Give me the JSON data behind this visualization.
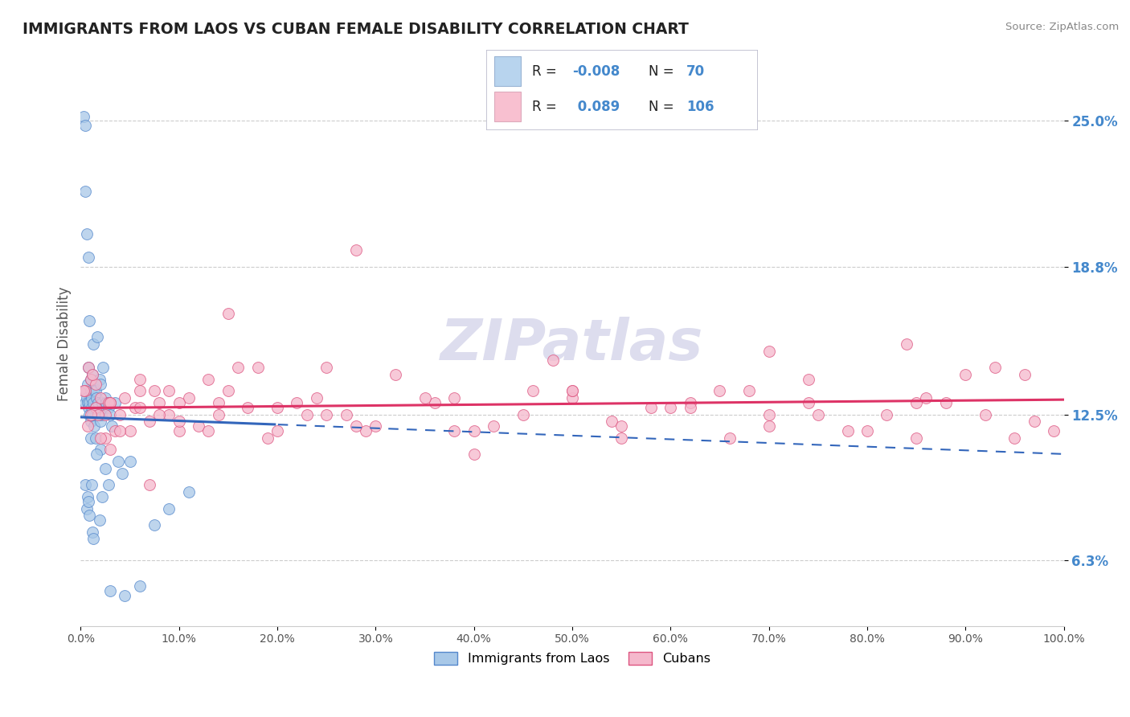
{
  "title": "IMMIGRANTS FROM LAOS VS CUBAN FEMALE DISABILITY CORRELATION CHART",
  "source": "Source: ZipAtlas.com",
  "ylabel": "Female Disability",
  "y_ticks": [
    6.3,
    12.5,
    18.8,
    25.0
  ],
  "x_range": [
    0,
    100
  ],
  "y_range": [
    3.5,
    27.5
  ],
  "blue_series": {
    "label": "Immigrants from Laos",
    "R": -0.008,
    "N": 70,
    "color": "#a8c8e8",
    "edge_color": "#5588cc",
    "trend_color": "#3366bb",
    "trend_style": "--",
    "x": [
      0.3,
      0.4,
      0.5,
      0.5,
      0.5,
      0.6,
      0.6,
      0.7,
      0.7,
      0.8,
      0.8,
      0.8,
      0.9,
      0.9,
      0.9,
      1.0,
      1.0,
      1.0,
      1.1,
      1.1,
      1.2,
      1.2,
      1.3,
      1.3,
      1.4,
      1.4,
      1.5,
      1.5,
      1.6,
      1.7,
      1.8,
      1.8,
      1.9,
      2.0,
      2.0,
      2.1,
      2.2,
      2.3,
      2.4,
      2.5,
      2.6,
      2.8,
      3.0,
      3.2,
      3.5,
      3.8,
      4.2,
      5.0,
      1.0,
      2.0,
      0.5,
      0.6,
      0.7,
      0.8,
      0.9,
      1.1,
      1.2,
      1.3,
      1.5,
      1.6,
      1.9,
      2.2,
      2.5,
      2.8,
      7.5,
      9.0,
      11.0,
      4.5,
      3.0,
      6.0
    ],
    "y": [
      25.2,
      13.5,
      13.0,
      22.0,
      24.8,
      13.2,
      20.2,
      13.0,
      13.8,
      12.8,
      19.2,
      14.5,
      12.5,
      13.0,
      16.5,
      12.2,
      13.5,
      14.0,
      12.8,
      13.2,
      12.5,
      14.2,
      13.0,
      15.5,
      13.5,
      12.0,
      12.8,
      13.5,
      13.2,
      15.8,
      12.5,
      13.0,
      14.0,
      12.2,
      13.8,
      12.5,
      13.0,
      14.5,
      12.8,
      13.2,
      13.0,
      12.8,
      12.5,
      12.0,
      13.0,
      10.5,
      10.0,
      10.5,
      11.5,
      11.0,
      9.5,
      8.5,
      9.0,
      8.8,
      8.2,
      9.5,
      7.5,
      7.2,
      11.5,
      10.8,
      8.0,
      9.0,
      10.2,
      9.5,
      7.8,
      8.5,
      9.2,
      4.8,
      5.0,
      5.2
    ]
  },
  "pink_series": {
    "label": "Cubans",
    "R": 0.089,
    "N": 106,
    "color": "#f5b8cc",
    "edge_color": "#dd5580",
    "trend_color": "#dd3366",
    "trend_style": "-",
    "x": [
      0.5,
      1.0,
      1.5,
      2.0,
      2.5,
      3.0,
      4.0,
      5.0,
      6.0,
      7.0,
      8.0,
      9.0,
      10.0,
      11.0,
      12.0,
      13.0,
      15.0,
      17.0,
      19.0,
      22.0,
      25.0,
      28.0,
      32.0,
      36.0,
      40.0,
      45.0,
      50.0,
      55.0,
      60.0,
      65.0,
      70.0,
      75.0,
      80.0,
      85.0,
      90.0,
      95.0,
      0.8,
      1.5,
      2.5,
      3.5,
      4.5,
      6.0,
      8.0,
      10.0,
      13.0,
      16.0,
      20.0,
      24.0,
      30.0,
      38.0,
      46.0,
      54.0,
      62.0,
      70.0,
      78.0,
      86.0,
      0.3,
      0.7,
      1.2,
      1.8,
      2.8,
      4.0,
      5.5,
      7.5,
      10.0,
      14.0,
      18.0,
      23.0,
      29.0,
      35.0,
      42.0,
      50.0,
      58.0,
      66.0,
      74.0,
      82.0,
      88.0,
      93.0,
      97.0,
      99.0,
      1.0,
      2.0,
      3.0,
      6.0,
      9.0,
      14.0,
      20.0,
      28.0,
      38.0,
      50.0,
      62.0,
      74.0,
      84.0,
      92.0,
      96.0,
      3.0,
      7.0,
      15.0,
      25.0,
      40.0,
      55.0,
      70.0,
      27.0,
      48.0,
      68.0,
      85.0
    ],
    "y": [
      13.5,
      14.0,
      12.8,
      13.2,
      11.5,
      13.0,
      12.5,
      11.8,
      13.5,
      12.2,
      13.0,
      12.5,
      11.8,
      13.2,
      12.0,
      14.0,
      13.5,
      12.8,
      11.5,
      13.0,
      12.5,
      19.5,
      14.2,
      13.0,
      11.8,
      12.5,
      13.2,
      11.5,
      12.8,
      13.5,
      12.0,
      12.5,
      11.8,
      13.0,
      14.2,
      11.5,
      14.5,
      13.8,
      12.5,
      11.8,
      13.2,
      14.0,
      12.5,
      13.0,
      11.8,
      14.5,
      12.8,
      13.2,
      12.0,
      11.8,
      13.5,
      12.2,
      13.0,
      12.5,
      11.8,
      13.2,
      13.5,
      12.0,
      14.2,
      12.5,
      13.0,
      11.8,
      12.8,
      13.5,
      12.2,
      13.0,
      14.5,
      12.5,
      11.8,
      13.2,
      12.0,
      13.5,
      12.8,
      11.5,
      14.0,
      12.5,
      13.0,
      14.5,
      12.2,
      11.8,
      12.5,
      11.5,
      13.0,
      12.8,
      13.5,
      12.5,
      11.8,
      12.0,
      13.2,
      13.5,
      12.8,
      13.0,
      15.5,
      12.5,
      14.2,
      11.0,
      9.5,
      16.8,
      14.5,
      10.8,
      12.0,
      15.2,
      12.5,
      14.8,
      13.5,
      11.5
    ]
  },
  "background_color": "#ffffff",
  "grid_color": "#cccccc",
  "title_color": "#222222",
  "source_color": "#888888",
  "legend_box_blue": "#b8d4ee",
  "legend_box_pink": "#f8c0d0",
  "watermark": "ZIPatlas",
  "watermark_color": "#ddddee"
}
